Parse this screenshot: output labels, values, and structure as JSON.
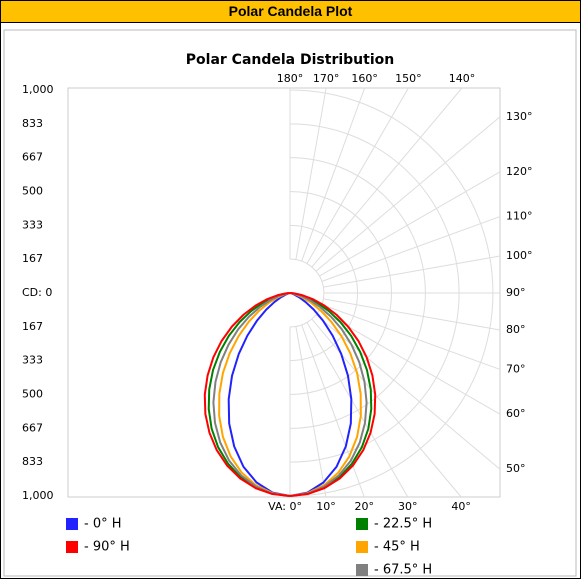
{
  "header": {
    "title": "Polar Candela Plot"
  },
  "chart_data": {
    "type": "polar",
    "title": "Polar Candela Distribution",
    "x": [
      0,
      5,
      10,
      15,
      20,
      25,
      30,
      35,
      40,
      45,
      50,
      55,
      60,
      65,
      70,
      75,
      80,
      85,
      90
    ],
    "series": [
      {
        "name": "- 0° H",
        "color": "#2222ff",
        "values": [
          1000,
          987,
          948,
          886,
          804,
          709,
          604,
          498,
          393,
          297,
          213,
          143,
          88,
          49,
          23,
          9,
          2,
          0,
          0
        ]
      },
      {
        "name": "- 22.5° H",
        "color": "#008000",
        "values": [
          1000,
          993,
          973,
          940,
          894,
          838,
          772,
          698,
          619,
          536,
          451,
          368,
          287,
          212,
          145,
          88,
          43,
          12,
          0
        ]
      },
      {
        "name": "- 45° H",
        "color": "#ffa500",
        "values": [
          1000,
          990,
          962,
          917,
          856,
          782,
          698,
          607,
          514,
          420,
          331,
          249,
          177,
          116,
          68,
          34,
          13,
          2,
          0
        ]
      },
      {
        "name": "- 67.5° H",
        "color": "#808080",
        "values": [
          1000,
          992,
          968,
          930,
          878,
          813,
          739,
          658,
          571,
          483,
          395,
          311,
          233,
          164,
          105,
          58,
          25,
          6,
          0
        ]
      },
      {
        "name": "- 90° H",
        "color": "#ff0000",
        "values": [
          1000,
          994,
          976,
          946,
          905,
          854,
          794,
          727,
          653,
          574,
          493,
          411,
          330,
          252,
          180,
          115,
          61,
          20,
          0
        ]
      }
    ],
    "rlim": [
      0,
      1000
    ],
    "rticks": [
      {
        "value": 0,
        "label": "CD: 0"
      },
      167,
      333,
      500,
      667,
      833,
      {
        "value": 1000,
        "label": "1,000"
      }
    ],
    "angle_ticks": [
      {
        "value": 0,
        "label": "VA: 0°"
      },
      {
        "value": 10,
        "label": "10°"
      },
      {
        "value": 20,
        "label": "20°"
      },
      {
        "value": 30,
        "label": "30°"
      },
      {
        "value": 40,
        "label": "40°"
      },
      {
        "value": 50,
        "label": "50°"
      },
      {
        "value": 60,
        "label": "60°"
      },
      {
        "value": 70,
        "label": "70°"
      },
      {
        "value": 80,
        "label": "80°"
      },
      {
        "value": 90,
        "label": "90°"
      },
      {
        "value": 100,
        "label": "100°"
      },
      {
        "value": 110,
        "label": "110°"
      },
      {
        "value": 120,
        "label": "120°"
      },
      {
        "value": 130,
        "label": "130°"
      },
      {
        "value": 140,
        "label": "140°"
      },
      {
        "value": 150,
        "label": "150°"
      },
      {
        "value": 160,
        "label": "160°"
      },
      {
        "value": 170,
        "label": "170°"
      },
      {
        "value": 180,
        "label": "180°"
      }
    ],
    "grid": true
  }
}
